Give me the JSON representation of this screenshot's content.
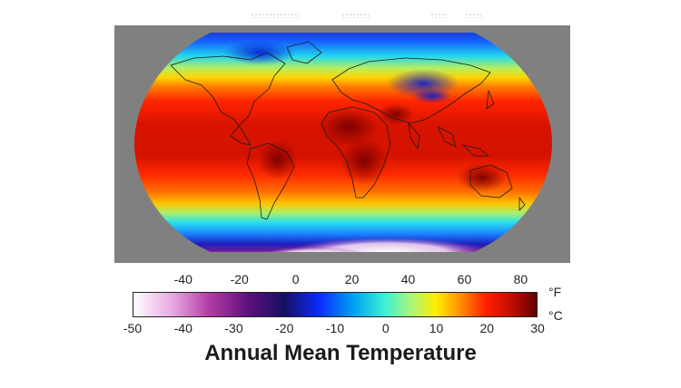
{
  "title": "Annual Mean Temperature",
  "colorbar": {
    "fahrenheit_ticks": [
      "-40",
      "-20",
      "0",
      "20",
      "40",
      "60",
      "80"
    ],
    "fahrenheit_unit": "°F",
    "celsius_ticks": [
      "-50",
      "-40",
      "-30",
      "-20",
      "-10",
      "0",
      "10",
      "20",
      "30"
    ],
    "celsius_unit": "°C",
    "celsius_range": [
      -50,
      30
    ],
    "color_stops": [
      {
        "celsius": -50,
        "color": "#ffffff"
      },
      {
        "celsius": -42,
        "color": "#e7a6e0"
      },
      {
        "celsius": -35,
        "color": "#b43ca6"
      },
      {
        "celsius": -27,
        "color": "#5c0f7a"
      },
      {
        "celsius": -20,
        "color": "#161061"
      },
      {
        "celsius": -13,
        "color": "#0a2cff"
      },
      {
        "celsius": -6,
        "color": "#00a7f0"
      },
      {
        "celsius": 0,
        "color": "#3ff2d2"
      },
      {
        "celsius": 5,
        "color": "#a8f57a"
      },
      {
        "celsius": 10,
        "color": "#ffef00"
      },
      {
        "celsius": 15,
        "color": "#ff8a00"
      },
      {
        "celsius": 20,
        "color": "#ff1e00"
      },
      {
        "celsius": 25,
        "color": "#c20c00"
      },
      {
        "celsius": 30,
        "color": "#5e0000"
      }
    ]
  },
  "map": {
    "projection": "Robinson",
    "background_color": "#808080"
  }
}
